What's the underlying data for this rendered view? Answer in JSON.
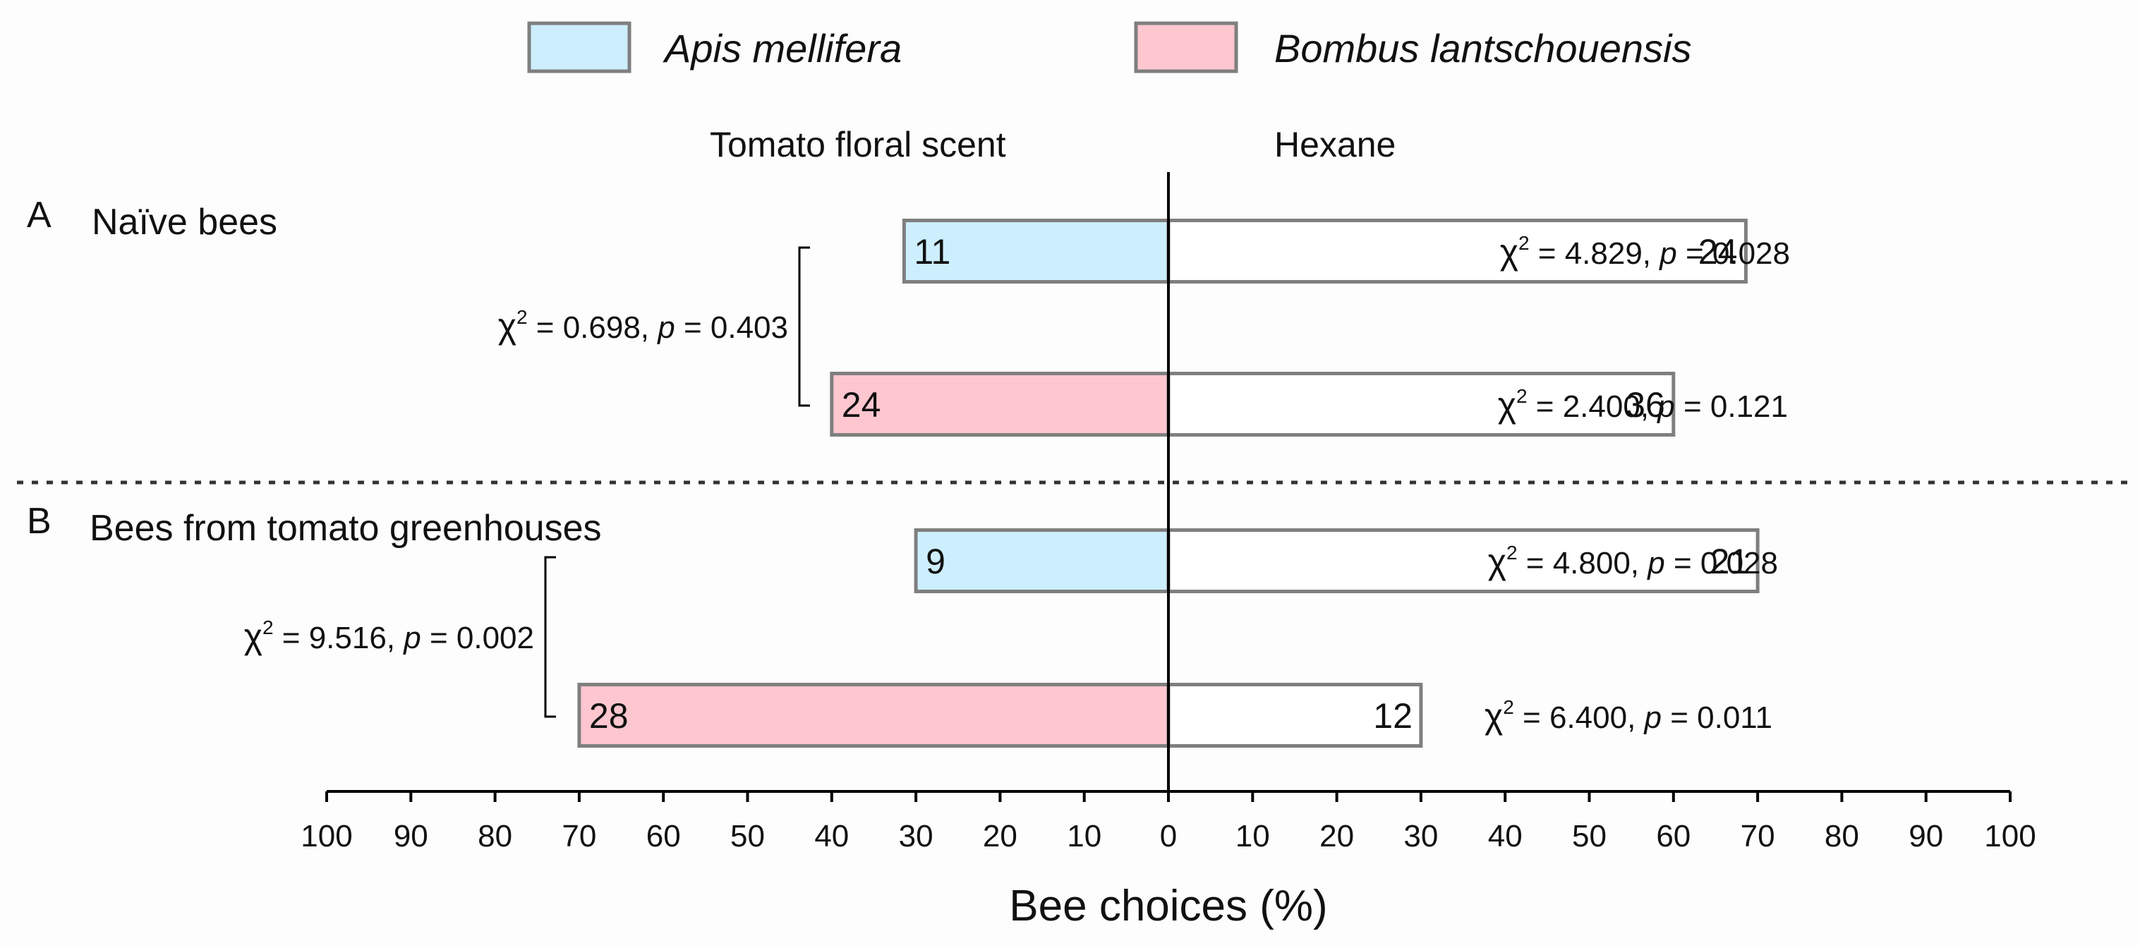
{
  "chart_data": {
    "type": "bar",
    "orientation": "horizontal-diverging",
    "title": "",
    "xlabel": "Bee choices (%)",
    "ylabel": "",
    "xlim": [
      -100,
      100
    ],
    "xticks": [
      "100",
      "90",
      "80",
      "70",
      "60",
      "50",
      "40",
      "30",
      "20",
      "10",
      "0",
      "10",
      "20",
      "30",
      "40",
      "50",
      "60",
      "70",
      "80",
      "90",
      "100"
    ],
    "left_side_label": "Tomato floral scent",
    "right_side_label": "Hexane",
    "legend": [
      {
        "name": "Apis mellifera",
        "color": "#cdeefd"
      },
      {
        "name": "Bombus lantschouensis",
        "color": "#fec7d0"
      }
    ],
    "panels": [
      {
        "letter": "A",
        "title": "Naïve bees",
        "comparison_stat": {
          "chi_prefix": "χ",
          "sup": "2",
          "value": " = 0.698, ",
          "p": "p",
          "p_value": " = 0.403"
        },
        "rows": [
          {
            "species": "Apis mellifera",
            "left_pct": 31.4,
            "right_pct": 68.6,
            "left_count": "11",
            "right_count": "24",
            "stat": {
              "chi_prefix": "χ",
              "sup": "2",
              "value": " = 4.829, ",
              "p": "p",
              "p_value": " = 0.028"
            }
          },
          {
            "species": "Bombus lantschouensis",
            "left_pct": 40,
            "right_pct": 60,
            "left_count": "24",
            "right_count": "36",
            "stat": {
              "chi_prefix": "χ",
              "sup": "2",
              "value": " = 2.400, ",
              "p": "p",
              "p_value": " = 0.121"
            }
          }
        ]
      },
      {
        "letter": "B",
        "title": "Bees from tomato greenhouses",
        "comparison_stat": {
          "chi_prefix": "χ",
          "sup": "2",
          "value": " = 9.516, ",
          "p": "p",
          "p_value": " = 0.002"
        },
        "rows": [
          {
            "species": "Apis mellifera",
            "left_pct": 30,
            "right_pct": 70,
            "left_count": "9",
            "right_count": "21",
            "stat": {
              "chi_prefix": "χ",
              "sup": "2",
              "value": " = 4.800, ",
              "p": "p",
              "p_value": " = 0.028"
            }
          },
          {
            "species": "Bombus lantschouensis",
            "left_pct": 70,
            "right_pct": 30,
            "left_count": "28",
            "right_count": "12",
            "stat": {
              "chi_prefix": "χ",
              "sup": "2",
              "value": " = 6.400, ",
              "p": "p",
              "p_value": " = 0.011"
            }
          }
        ]
      }
    ]
  }
}
